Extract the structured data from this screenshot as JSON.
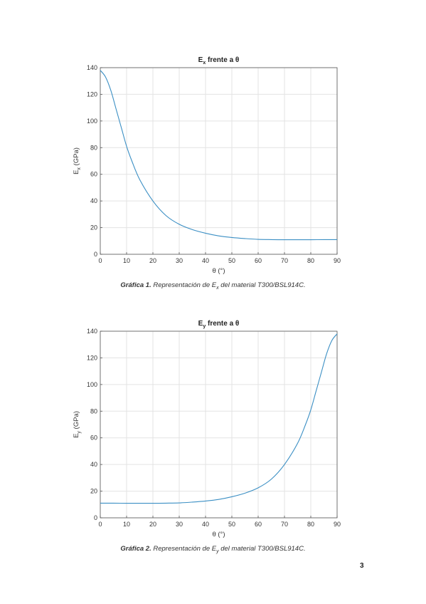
{
  "chart_data": [
    {
      "type": "line",
      "title_main": "E",
      "title_sub": "x",
      "title_rest": " frente a θ",
      "xlabel": "θ (°)",
      "ylabel_main": "E",
      "ylabel_sub": "x",
      "ylabel_rest": " (GPa)",
      "xlim": [
        0,
        90
      ],
      "ylim": [
        0,
        140
      ],
      "xticks": [
        0,
        10,
        20,
        30,
        40,
        50,
        60,
        70,
        80,
        90
      ],
      "yticks": [
        0,
        20,
        40,
        60,
        80,
        100,
        120,
        140
      ],
      "grid": true,
      "line_color": "#3b8fc4",
      "x": [
        0,
        2,
        4,
        6,
        8,
        10,
        12,
        15,
        20,
        25,
        30,
        35,
        40,
        45,
        50,
        55,
        60,
        65,
        70,
        75,
        80,
        85,
        90
      ],
      "y": [
        138,
        133,
        123,
        109,
        95,
        81,
        70,
        56,
        40,
        29,
        22.5,
        18.5,
        15.8,
        13.8,
        12.6,
        11.8,
        11.2,
        11,
        10.9,
        10.9,
        10.9,
        11,
        11
      ]
    },
    {
      "type": "line",
      "title_main": "E",
      "title_sub": "y",
      "title_rest": " frente a θ",
      "xlabel": "θ (°)",
      "ylabel_main": "E",
      "ylabel_sub": "y",
      "ylabel_rest": " (GPa)",
      "xlim": [
        0,
        90
      ],
      "ylim": [
        0,
        140
      ],
      "xticks": [
        0,
        10,
        20,
        30,
        40,
        50,
        60,
        70,
        80,
        90
      ],
      "yticks": [
        0,
        20,
        40,
        60,
        80,
        100,
        120,
        140
      ],
      "grid": true,
      "line_color": "#3b8fc4",
      "x": [
        0,
        5,
        10,
        15,
        20,
        25,
        30,
        35,
        40,
        45,
        50,
        55,
        60,
        65,
        70,
        75,
        78,
        80,
        82,
        84,
        86,
        88,
        90
      ],
      "y": [
        11,
        11,
        10.9,
        10.9,
        10.9,
        11,
        11.2,
        11.8,
        12.6,
        13.8,
        15.8,
        18.5,
        22.5,
        29,
        40,
        56,
        70,
        81,
        95,
        109,
        123,
        133,
        138
      ]
    }
  ],
  "captions": [
    {
      "lead": "Gráfica 1.",
      "text_before": " Representación de E",
      "sub": "x",
      "text_after": " del material T300/BSL914C."
    },
    {
      "lead": "Gráfica 2.",
      "text_before": " Representación de E",
      "sub": "y",
      "text_after": " del material T300/BSL914C."
    }
  ],
  "page_number": "3"
}
